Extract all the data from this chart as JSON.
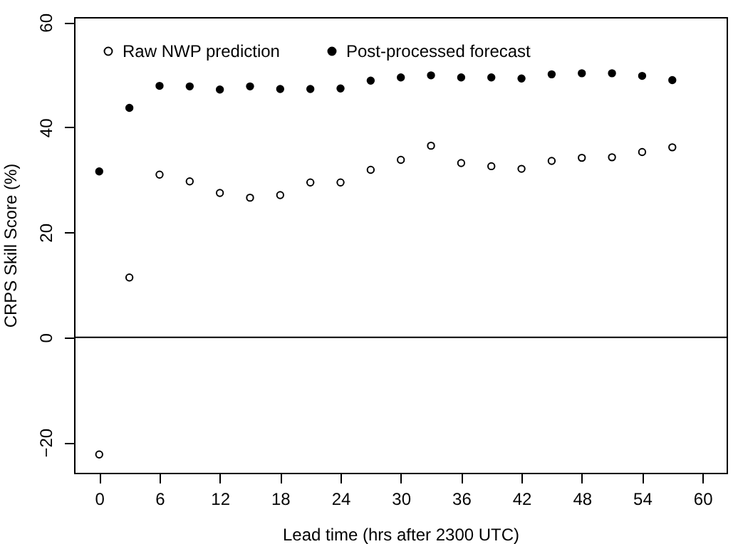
{
  "chart_data": {
    "type": "scatter",
    "xlabel": "Lead time (hrs after 2300 UTC)",
    "ylabel": "CRPS Skill Score (%)",
    "x": [
      0,
      3,
      6,
      9,
      12,
      15,
      18,
      21,
      24,
      27,
      30,
      33,
      36,
      39,
      42,
      45,
      48,
      51,
      54,
      57
    ],
    "series": [
      {
        "name": "Raw NWP prediction",
        "color": "#000000",
        "values": [
          -22.3,
          11.4,
          31.0,
          29.7,
          27.5,
          26.6,
          27.1,
          29.5,
          29.5,
          31.9,
          33.8,
          36.5,
          33.2,
          32.6,
          32.1,
          33.6,
          34.2,
          34.3,
          35.3,
          36.2
        ]
      },
      {
        "name": "Post-processed forecast",
        "color": "#000000",
        "values": [
          31.6,
          43.7,
          47.9,
          47.8,
          47.2,
          47.8,
          47.3,
          47.3,
          47.4,
          48.9,
          49.5,
          49.9,
          49.5,
          49.5,
          49.3,
          50.1,
          50.3,
          50.3,
          49.8,
          49.0
        ]
      }
    ],
    "xlim": [
      -2.5,
      62.4
    ],
    "ylim": [
      -25.8,
      61
    ],
    "xticks": [
      0,
      6,
      12,
      18,
      24,
      30,
      36,
      42,
      48,
      54,
      60
    ],
    "yticks": [
      -20,
      0,
      20,
      40,
      60
    ],
    "ref_lines": [
      {
        "axis": "y",
        "value": 0,
        "color": "#000000"
      }
    ],
    "grid": false,
    "legend": "top left",
    "marker": "circle"
  }
}
